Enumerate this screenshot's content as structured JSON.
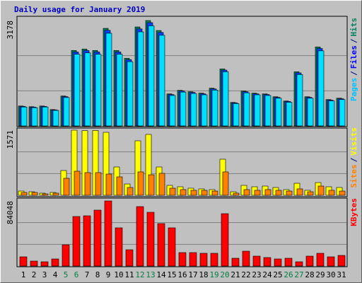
{
  "chart_data": {
    "type": "bar",
    "title": "Daily usage for January 2019",
    "title_color": "#0000c0",
    "legend_separator": "/",
    "categories": [
      "1",
      "2",
      "3",
      "4",
      "5",
      "6",
      "7",
      "8",
      "9",
      "10",
      "11",
      "12",
      "13",
      "14",
      "15",
      "16",
      "17",
      "18",
      "19",
      "20",
      "21",
      "22",
      "23",
      "24",
      "25",
      "26",
      "27",
      "28",
      "29",
      "30",
      "31"
    ],
    "category_colors": [
      "#000000",
      "#000000",
      "#000000",
      "#000000",
      "#008040",
      "#008040",
      "#000000",
      "#000000",
      "#000000",
      "#000000",
      "#000000",
      "#008040",
      "#008040",
      "#000000",
      "#000000",
      "#000000",
      "#000000",
      "#000000",
      "#008040",
      "#008040",
      "#000000",
      "#000000",
      "#000000",
      "#000000",
      "#000000",
      "#008040",
      "#008040",
      "#000000",
      "#000000",
      "#000000",
      "#000000"
    ],
    "panels": [
      {
        "ylim": [
          0,
          3178
        ],
        "yticks": [
          3178
        ],
        "legend_order": [
          2,
          1,
          0
        ],
        "series": [
          {
            "name": "Hits",
            "color": "#00805c",
            "label_color": "#00805c",
            "values": [
              601,
              580,
              601,
              494,
              902,
              2276,
              2319,
              2276,
              2942,
              2276,
              2040,
              2985,
              3178,
              2877,
              966,
              1074,
              1031,
              988,
              1138,
              1718,
              709,
              1052,
              988,
              966,
              880,
              752,
              1632,
              880,
              2383,
              795,
              837
            ]
          },
          {
            "name": "Files",
            "color": "#0040ff",
            "label_color": "#0000ff",
            "values": [
              589,
              568,
              589,
              484,
              884,
              2230,
              2273,
              2230,
              2883,
              2230,
              1999,
              2925,
              3114,
              2819,
              947,
              1053,
              1010,
              968,
              1115,
              1684,
              695,
              1031,
              968,
              947,
              862,
              737,
              1599,
              862,
              2335,
              779,
              820
            ]
          },
          {
            "name": "Pages",
            "color": "#00e0ff",
            "label_color": "#00c0ff",
            "values": [
              571,
              551,
              571,
              469,
              857,
              2162,
              2203,
              2162,
              2795,
              2162,
              1938,
              2836,
              3019,
              2733,
              918,
              1020,
              979,
              939,
              1081,
              1632,
              674,
              999,
              939,
              918,
              836,
              714,
              1550,
              836,
              2264,
              755,
              795
            ]
          }
        ]
      },
      {
        "ylim": [
          0,
          1571
        ],
        "yticks": [
          1571
        ],
        "legend_order": [
          1,
          0
        ],
        "series": [
          {
            "name": "Visits",
            "color": "#ffff00",
            "label_color": "#ffff00",
            "values": [
              102,
              85,
              51,
              68,
              598,
              1571,
              1560,
              1565,
              1520,
              683,
              273,
              1315,
              1469,
              683,
              239,
              205,
              171,
              154,
              137,
              871,
              85,
              239,
              205,
              222,
              188,
              137,
              290,
              120,
              307,
              205,
              188
            ]
          },
          {
            "name": "Sites",
            "color": "#ff8000",
            "label_color": "#ff8000",
            "values": [
              68,
              68,
              34,
              51,
              410,
              581,
              547,
              547,
              512,
              444,
              188,
              564,
              495,
              530,
              171,
              137,
              120,
              120,
              102,
              564,
              51,
              137,
              120,
              137,
              120,
              102,
              154,
              85,
              222,
              120,
              102
            ]
          }
        ]
      },
      {
        "ylim": [
          0,
          84048
        ],
        "yticks": [
          84048
        ],
        "legend_order": [
          0
        ],
        "series": [
          {
            "name": "KBytes",
            "color": "#ff0000",
            "label_color": "#ff0000",
            "values": [
              11877,
              6395,
              5482,
              9136,
              27408,
              63952,
              64866,
              72174,
              84048,
              49334,
              21013,
              76742,
              69434,
              54816,
              49334,
              17358,
              17358,
              16445,
              16445,
              67606,
              10050,
              19186,
              12790,
              10963,
              9136,
              10050,
              5482,
              12790,
              16445,
              11877,
              13704
            ]
          }
        ]
      }
    ]
  }
}
